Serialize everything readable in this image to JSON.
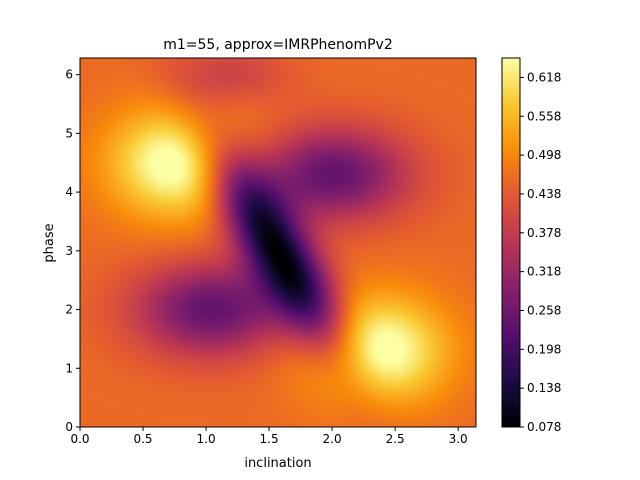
{
  "chart_data": {
    "type": "heatmap",
    "title": "m1=55, approx=IMRPhenomPv2",
    "xlabel": "inclination",
    "ylabel": "phase",
    "xlim": [
      0,
      3.14159
    ],
    "ylim": [
      0,
      6.28318
    ],
    "x_ticks": [
      0.0,
      0.5,
      1.0,
      1.5,
      2.0,
      2.5,
      3.0
    ],
    "x_tick_labels": [
      "0.0",
      "0.5",
      "1.0",
      "1.5",
      "2.0",
      "2.5",
      "3.0"
    ],
    "y_ticks": [
      0,
      1,
      2,
      3,
      4,
      5,
      6
    ],
    "y_tick_labels": [
      "0",
      "1",
      "2",
      "3",
      "4",
      "5",
      "6"
    ],
    "colormap": "inferno",
    "colorbar": {
      "range": [
        0.078,
        0.648
      ],
      "ticks": [
        0.078,
        0.138,
        0.198,
        0.258,
        0.318,
        0.378,
        0.438,
        0.498,
        0.558,
        0.618
      ],
      "tick_labels": [
        "0.078",
        "0.138",
        "0.198",
        "0.258",
        "0.318",
        "0.378",
        "0.438",
        "0.498",
        "0.558",
        "0.618"
      ]
    },
    "field": {
      "base": 0.46,
      "features": [
        {
          "kind": "max",
          "inclination": 0.78,
          "phase": 4.5,
          "value": 0.63
        },
        {
          "kind": "max",
          "inclination": 2.36,
          "phase": 1.3,
          "value": 0.63
        },
        {
          "kind": "min",
          "inclination": 1.57,
          "phase": 3.0,
          "value": 0.08
        },
        {
          "kind": "low-band",
          "inclination": 1.1,
          "phase": 2.0,
          "value": 0.2
        },
        {
          "kind": "low-band",
          "inclination": 2.0,
          "phase": 4.3,
          "value": 0.2
        }
      ]
    }
  }
}
